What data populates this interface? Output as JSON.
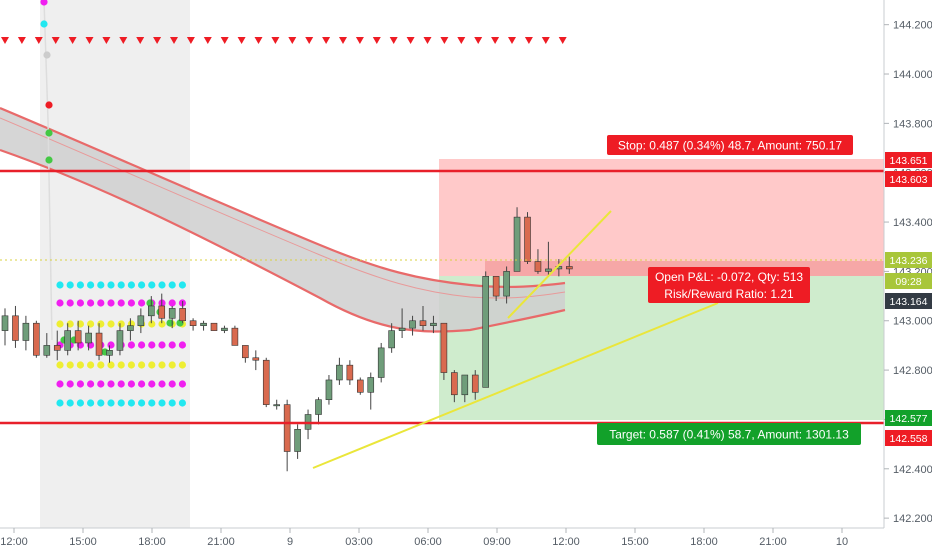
{
  "colors": {
    "background": "#ffffff",
    "up_candle": "#6f9d7a",
    "down_candle": "#d96a4f",
    "stop_zone": "#ffc9c9",
    "target_zone": "#cfeccd",
    "stop_line": "#e8202a",
    "trend_line": "#eae63a",
    "ema_band_fill": "#cfcfcf",
    "ema_band_edge": "#e86a6a",
    "session_shade": "#efefef",
    "label_red": "#ee1c24",
    "label_green": "#12a12a",
    "marker_red": "#ee1c24",
    "dot_magenta": "#f020f0",
    "dot_cyan": "#22e8f0",
    "dot_yellow": "#eeee33",
    "dot_green": "#44c844"
  },
  "chart_data": {
    "type": "candlestick",
    "y_axis": {
      "range": [
        142.16,
        144.3
      ],
      "ticks": [
        "144.200",
        "144.000",
        "143.800",
        "143.600",
        "143.400",
        "143.200",
        "143.000",
        "142.800",
        "142.600",
        "142.400",
        "142.200"
      ]
    },
    "x_axis": {
      "ticks": [
        "12:00",
        "15:00",
        "18:00",
        "21:00",
        "9",
        "03:00",
        "06:00",
        "09:00",
        "12:00",
        "15:00",
        "18:00",
        "21:00",
        "10"
      ]
    },
    "price_tags": [
      {
        "text": "143.651",
        "price": 143.651,
        "color": "#ee1c24"
      },
      {
        "text": "143.603",
        "price": 143.603,
        "color": "#ee1c24"
      },
      {
        "text": "143.236",
        "price": 143.236,
        "color": "#a8c63a"
      },
      {
        "text": "09:28",
        "price": 143.196,
        "color": "#a8c63a"
      },
      {
        "text": "143.164",
        "price": 143.164,
        "color": "#333b44"
      },
      {
        "text": "142.577",
        "price": 142.577,
        "color": "#12a12a"
      },
      {
        "text": "142.558",
        "price": 142.558,
        "color": "#ee1c24"
      }
    ],
    "position": {
      "stop_label": "Stop: 0.487 (0.34%) 48.7, Amount: 750.17",
      "pnl_label": "Open P&L: -0.072, Qty: 513",
      "rr_label": "Risk/Reward Ratio: 1.21",
      "target_label": "Target: 0.587 (0.41%) 58.7, Amount: 1301.13",
      "stop_price": 143.651,
      "entry_price": 143.164,
      "target_price": 142.577
    },
    "stop_line_prices": [
      143.603,
      142.558
    ],
    "candles": [
      [
        142.96,
        143.05,
        142.9,
        143.02
      ],
      [
        143.02,
        143.06,
        142.89,
        142.92
      ],
      [
        142.92,
        143.02,
        142.88,
        142.99
      ],
      [
        142.99,
        143.0,
        142.85,
        142.86
      ],
      [
        142.86,
        142.95,
        142.85,
        142.9
      ],
      [
        142.9,
        142.96,
        142.84,
        142.88
      ],
      [
        142.88,
        142.99,
        142.86,
        142.96
      ],
      [
        142.96,
        143.0,
        142.88,
        142.91
      ],
      [
        142.91,
        142.98,
        142.88,
        142.95
      ],
      [
        142.95,
        142.99,
        142.84,
        142.86
      ],
      [
        142.86,
        142.9,
        142.83,
        142.88
      ],
      [
        142.88,
        142.99,
        142.86,
        142.96
      ],
      [
        142.96,
        143.01,
        142.92,
        142.98
      ],
      [
        142.98,
        143.05,
        142.95,
        143.02
      ],
      [
        143.02,
        143.1,
        142.99,
        143.06
      ],
      [
        143.06,
        143.11,
        142.99,
        143.01
      ],
      [
        143.01,
        143.06,
        142.97,
        143.05
      ],
      [
        143.05,
        143.08,
        142.99,
        143.0
      ],
      [
        143.0,
        143.01,
        142.96,
        142.98
      ],
      [
        142.98,
        143.0,
        142.96,
        142.99
      ],
      [
        142.99,
        142.99,
        142.96,
        142.96
      ],
      [
        142.96,
        142.98,
        142.95,
        142.97
      ],
      [
        142.97,
        142.98,
        142.9,
        142.9
      ],
      [
        142.9,
        142.9,
        142.83,
        142.85
      ],
      [
        142.85,
        142.88,
        142.8,
        142.84
      ],
      [
        142.84,
        142.85,
        142.65,
        142.66
      ],
      [
        142.66,
        142.68,
        142.64,
        142.66
      ],
      [
        142.66,
        142.68,
        142.39,
        142.47
      ],
      [
        142.47,
        142.58,
        142.44,
        142.56
      ],
      [
        142.56,
        142.64,
        142.52,
        142.62
      ],
      [
        142.62,
        142.69,
        142.58,
        142.68
      ],
      [
        142.68,
        142.78,
        142.66,
        142.76
      ],
      [
        142.76,
        142.85,
        142.74,
        142.82
      ],
      [
        142.82,
        142.84,
        142.74,
        142.76
      ],
      [
        142.76,
        142.77,
        142.7,
        142.71
      ],
      [
        142.71,
        142.79,
        142.64,
        142.77
      ],
      [
        142.77,
        142.91,
        142.75,
        142.89
      ],
      [
        142.89,
        142.99,
        142.87,
        142.96
      ],
      [
        142.96,
        143.05,
        142.93,
        142.97
      ],
      [
        142.97,
        143.02,
        142.94,
        143.0
      ],
      [
        143.0,
        143.06,
        142.96,
        142.98
      ],
      [
        142.98,
        143.02,
        142.95,
        142.99
      ],
      [
        142.99,
        142.99,
        142.76,
        142.79
      ],
      [
        142.79,
        142.8,
        142.67,
        142.7
      ],
      [
        142.7,
        142.78,
        142.67,
        142.78
      ],
      [
        142.78,
        142.8,
        142.68,
        142.71
      ],
      [
        142.73,
        143.2,
        142.73,
        143.18
      ],
      [
        143.18,
        143.18,
        143.08,
        143.1
      ],
      [
        143.1,
        143.22,
        143.07,
        143.2
      ],
      [
        143.2,
        143.46,
        143.2,
        143.42
      ],
      [
        143.42,
        143.44,
        143.23,
        143.24
      ],
      [
        143.24,
        143.29,
        143.19,
        143.2
      ],
      [
        143.2,
        143.32,
        143.18,
        143.21
      ],
      [
        143.21,
        143.25,
        143.18,
        143.22
      ],
      [
        143.22,
        143.26,
        143.19,
        143.21
      ]
    ]
  }
}
